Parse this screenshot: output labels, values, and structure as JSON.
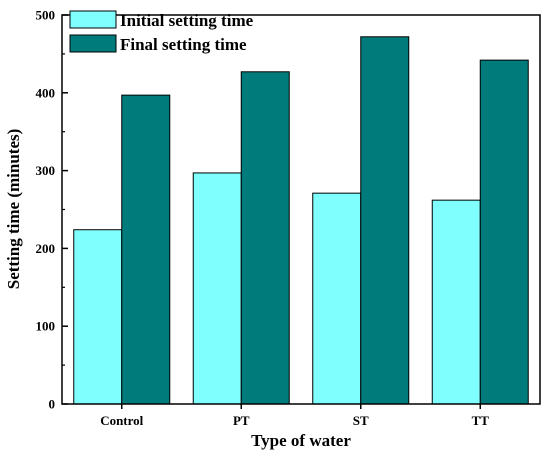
{
  "chart_data": {
    "type": "bar",
    "categories": [
      "Control",
      "PT",
      "ST",
      "TT"
    ],
    "series": [
      {
        "name": "Initial setting time",
        "values": [
          224,
          297,
          271,
          262
        ],
        "color": "#80ffff"
      },
      {
        "name": "Final setting time",
        "values": [
          397,
          427,
          472,
          442
        ],
        "color": "#007b7b"
      }
    ],
    "xlabel": "Type of water",
    "ylabel": "Setting time (minutes)",
    "ylim": [
      0,
      500
    ],
    "yticks": [
      0,
      100,
      200,
      300,
      400,
      500
    ],
    "legend_position": "top-left",
    "grid": false
  }
}
